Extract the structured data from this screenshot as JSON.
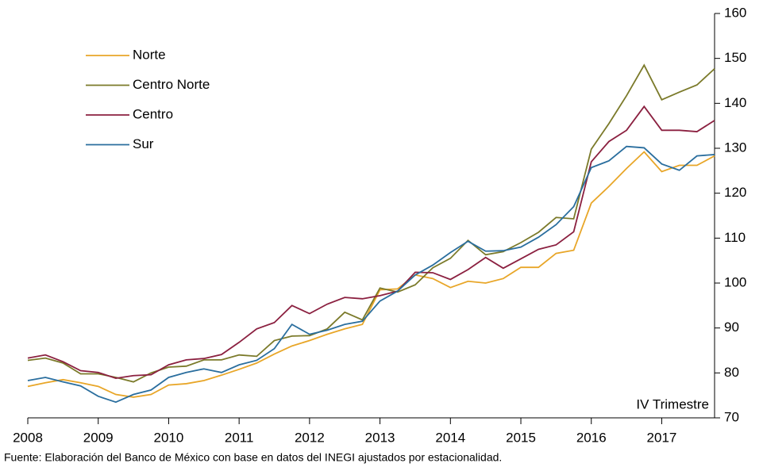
{
  "chart_data": {
    "type": "line",
    "x": [
      2008,
      2008.25,
      2008.5,
      2008.75,
      2009,
      2009.25,
      2009.5,
      2009.75,
      2010,
      2010.25,
      2010.5,
      2010.75,
      2011,
      2011.25,
      2011.5,
      2011.75,
      2012,
      2012.25,
      2012.5,
      2012.75,
      2013,
      2013.25,
      2013.5,
      2013.75,
      2014,
      2014.25,
      2014.5,
      2014.75,
      2015,
      2015.25,
      2015.5,
      2015.75,
      2016,
      2016.25,
      2016.5,
      2016.75,
      2017,
      2017.25,
      2017.5,
      2017.75
    ],
    "series": [
      {
        "name": "Norte",
        "color": "#e8a628",
        "values": [
          77,
          77.8,
          78.5,
          77.8,
          77,
          75.2,
          74.6,
          75.2,
          77.3,
          77.6,
          78.3,
          79.5,
          80.8,
          82.2,
          84.2,
          86,
          87.2,
          88.6,
          89.8,
          90.8,
          98.5,
          98.7,
          101.8,
          101,
          99,
          100.4,
          100,
          101,
          103.5,
          103.5,
          106.6,
          107.3,
          117.8,
          121.5,
          125.5,
          129.2,
          124.8,
          126.2,
          126.2,
          128.3
        ]
      },
      {
        "name": "Centro Norte",
        "color": "#7b7a2a",
        "values": [
          82.8,
          83.3,
          82.2,
          79.8,
          79.8,
          79,
          78,
          80,
          81.3,
          81.5,
          82.9,
          82.9,
          84,
          83.7,
          87.2,
          88.2,
          88.3,
          89.8,
          93.5,
          91.8,
          98.9,
          98,
          99.6,
          103.4,
          105.5,
          109.5,
          106.3,
          107,
          109,
          111.3,
          114.6,
          114.3,
          129.8,
          135.5,
          141.7,
          148.5,
          140.8,
          142.5,
          144.1,
          147.7
        ]
      },
      {
        "name": "Centro",
        "color": "#8b2040",
        "values": [
          83.3,
          84,
          82.5,
          80.5,
          80.1,
          78.8,
          79.4,
          79.6,
          81.8,
          82.9,
          83.2,
          84.1,
          86.8,
          89.8,
          91.2,
          95,
          93.2,
          95.3,
          96.8,
          96.5,
          97.2,
          98.2,
          102.4,
          102.3,
          100.8,
          103,
          105.7,
          103.3,
          105.4,
          107.5,
          108.5,
          111.4,
          127,
          131.5,
          134,
          139.3,
          134,
          134,
          133.7,
          136.2
        ]
      },
      {
        "name": "Sur",
        "color": "#2a6e9e",
        "values": [
          78.3,
          79,
          78,
          77.1,
          74.8,
          73.5,
          75.2,
          76.2,
          79,
          80.1,
          80.9,
          80.1,
          81.8,
          82.8,
          85.4,
          90.8,
          88.6,
          89.5,
          90.8,
          91.5,
          96,
          98.2,
          101.8,
          104,
          106.8,
          109.3,
          107.1,
          107.2,
          108,
          110.2,
          113,
          117,
          125.7,
          127.2,
          130.4,
          130.1,
          126.5,
          125.1,
          128.3,
          128.6
        ]
      }
    ],
    "xlim": [
      2008,
      2017.75
    ],
    "xticks": [
      2008,
      2009,
      2010,
      2011,
      2012,
      2013,
      2014,
      2015,
      2016,
      2017
    ],
    "ylim": [
      70,
      160
    ],
    "yticks": [
      70,
      80,
      90,
      100,
      110,
      120,
      130,
      140,
      150,
      160
    ],
    "y_axis_side": "right",
    "annotation": "IV Trimestre",
    "source": "Fuente: Elaboración del Banco de México con base en datos del INEGI ajustados por estacionalidad."
  }
}
